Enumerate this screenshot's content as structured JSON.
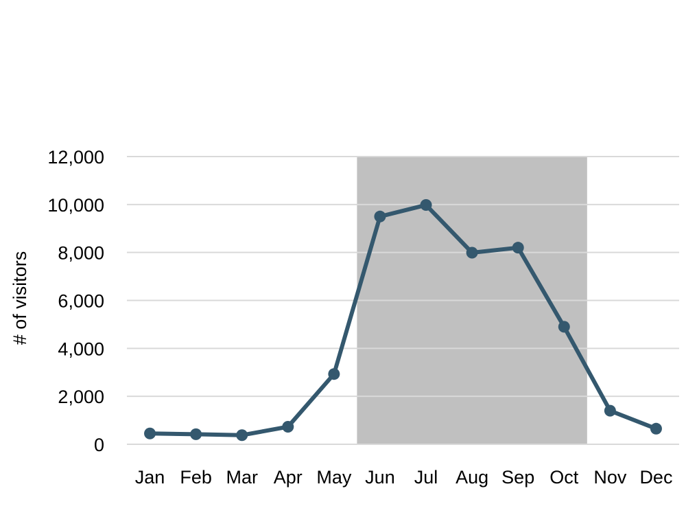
{
  "chart_data": {
    "type": "line",
    "title": "",
    "xlabel": "",
    "ylabel": "# of visitors",
    "categories": [
      "Jan",
      "Feb",
      "Mar",
      "Apr",
      "May",
      "Jun",
      "Jul",
      "Aug",
      "Sep",
      "Oct",
      "Nov",
      "Dec"
    ],
    "series": [
      {
        "values": [
          450,
          420,
          380,
          730,
          2930,
          9500,
          9980,
          7990,
          8200,
          4900,
          1400,
          650
        ],
        "color": "#34586e"
      }
    ],
    "ylim": [
      0,
      12000
    ],
    "yticks": [
      0,
      2000,
      4000,
      6000,
      8000,
      10000,
      12000
    ],
    "ytick_labels": [
      "0",
      "2,000",
      "4,000",
      "6,000",
      "8,000",
      "10,000",
      "12,000"
    ],
    "grid": true,
    "legend": "none",
    "highlight": {
      "from": "Jun",
      "to": "Oct",
      "color": "#c0c0c0"
    },
    "gridline_color": "#d9d9d9"
  }
}
